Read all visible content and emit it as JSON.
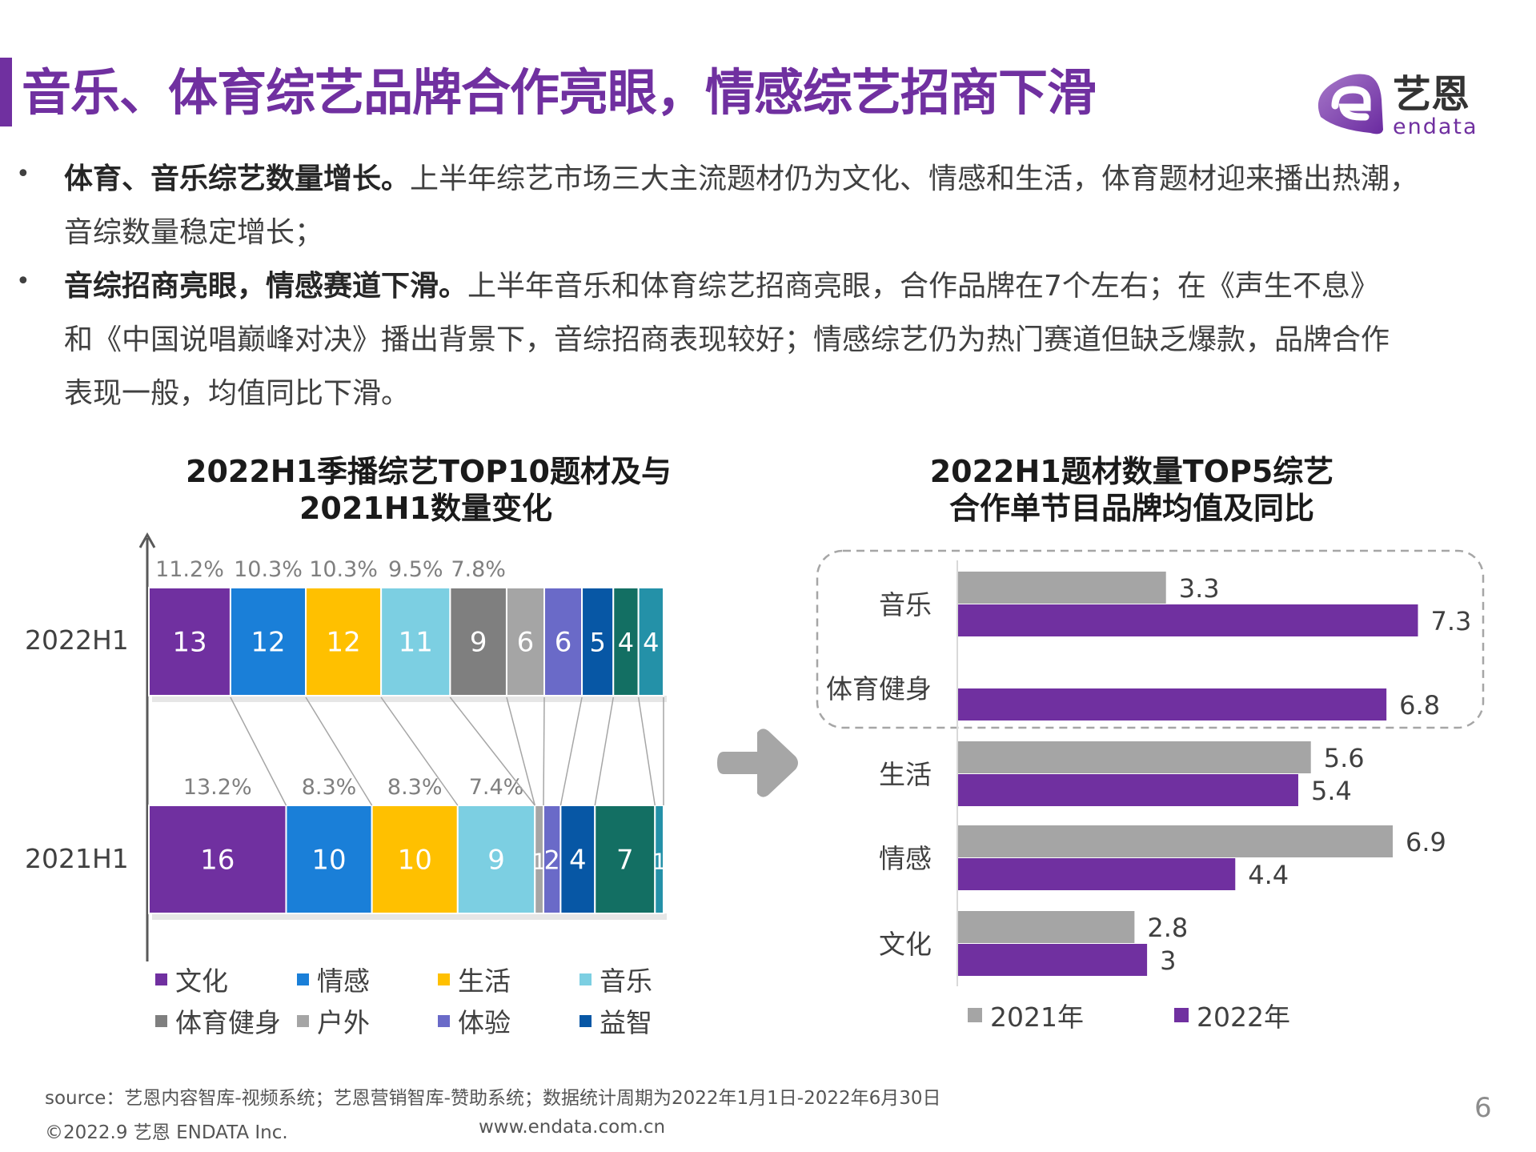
{
  "header": {
    "title": "音乐、体育综艺品牌合作亮眼，情感综艺招商下滑",
    "logo_cn": "艺恩",
    "logo_en": "endata",
    "accent": "#7030a0"
  },
  "bullets": [
    {
      "bold": "体育、音乐综艺数量增长。",
      "lines": [
        "上半年综艺市场三大主流题材仍为文化、情感和生活，体育题材迎来播出热潮，",
        "音综数量稳定增长；"
      ]
    },
    {
      "bold": "音综招商亮眼，情感赛道下滑。",
      "lines": [
        "上半年音乐和体育综艺招商亮眼，合作品牌在7个左右；在《声生不息》",
        "和《中国说唱巅峰对决》播出背景下，音综招商表现较好；情感综艺仍为热门赛道但缺乏爆款，品牌合作",
        "表现一般，均值同比下滑。"
      ]
    }
  ],
  "chart_data": [
    {
      "type": "bar",
      "stacked": "100%",
      "orientation": "horizontal",
      "title_lines": [
        "2022H1季播综艺TOP10题材及与",
        "2021H1数量变化"
      ],
      "categories": [
        "2022H1",
        "2021H1"
      ],
      "series": [
        {
          "name": "文化",
          "color": "#7030a0",
          "values": [
            13,
            16
          ]
        },
        {
          "name": "情感",
          "color": "#1a7fd8",
          "values": [
            12,
            10
          ]
        },
        {
          "name": "生活",
          "color": "#ffc000",
          "values": [
            12,
            10
          ]
        },
        {
          "name": "音乐",
          "color": "#7ccfe2",
          "values": [
            11,
            9
          ]
        },
        {
          "name": "体育健身",
          "color": "#7f7f7f",
          "values": [
            9,
            0
          ]
        },
        {
          "name": "户外",
          "color": "#a5a5a5",
          "values": [
            6,
            1
          ]
        },
        {
          "name": "体验",
          "color": "#6a6ac8",
          "values": [
            6,
            2
          ]
        },
        {
          "name": "益智",
          "color": "#0757a5",
          "values": [
            5,
            4
          ]
        },
        {
          "color": "#136f63",
          "values": [
            4,
            7
          ]
        },
        {
          "color": "#2491a8",
          "values": [
            4,
            1
          ]
        }
      ],
      "percent_labels": [
        [
          "11.2%",
          "10.3%",
          "10.3%",
          "9.5%",
          "7.8%"
        ],
        [
          "13.2%",
          "8.3%",
          "8.3%",
          "7.4%"
        ]
      ],
      "legend_position": "bottom"
    },
    {
      "type": "bar",
      "orientation": "horizontal",
      "title_lines": [
        "2022H1题材数量TOP5综艺",
        "合作单节目品牌均值及同比"
      ],
      "categories": [
        "音乐",
        "体育健身",
        "生活",
        "情感",
        "文化"
      ],
      "series": [
        {
          "name": "2021年",
          "color": "#a5a5a5",
          "values": [
            3.3,
            null,
            5.6,
            6.9,
            2.8
          ]
        },
        {
          "name": "2022年",
          "color": "#7030a0",
          "values": [
            7.3,
            6.8,
            5.4,
            4.4,
            3
          ]
        }
      ],
      "highlight": [
        "音乐",
        "体育健身"
      ],
      "legend_position": "bottom"
    }
  ],
  "footer": {
    "source": "source：艺恩内容智库-视频系统；艺恩营销智库-赞助系统；数据统计周期为2022年1月1日-2022年6月30日",
    "copyright": "©2022.9 艺恩 ENDATA Inc.",
    "website": "www.endata.com.cn",
    "page_number": "6"
  }
}
